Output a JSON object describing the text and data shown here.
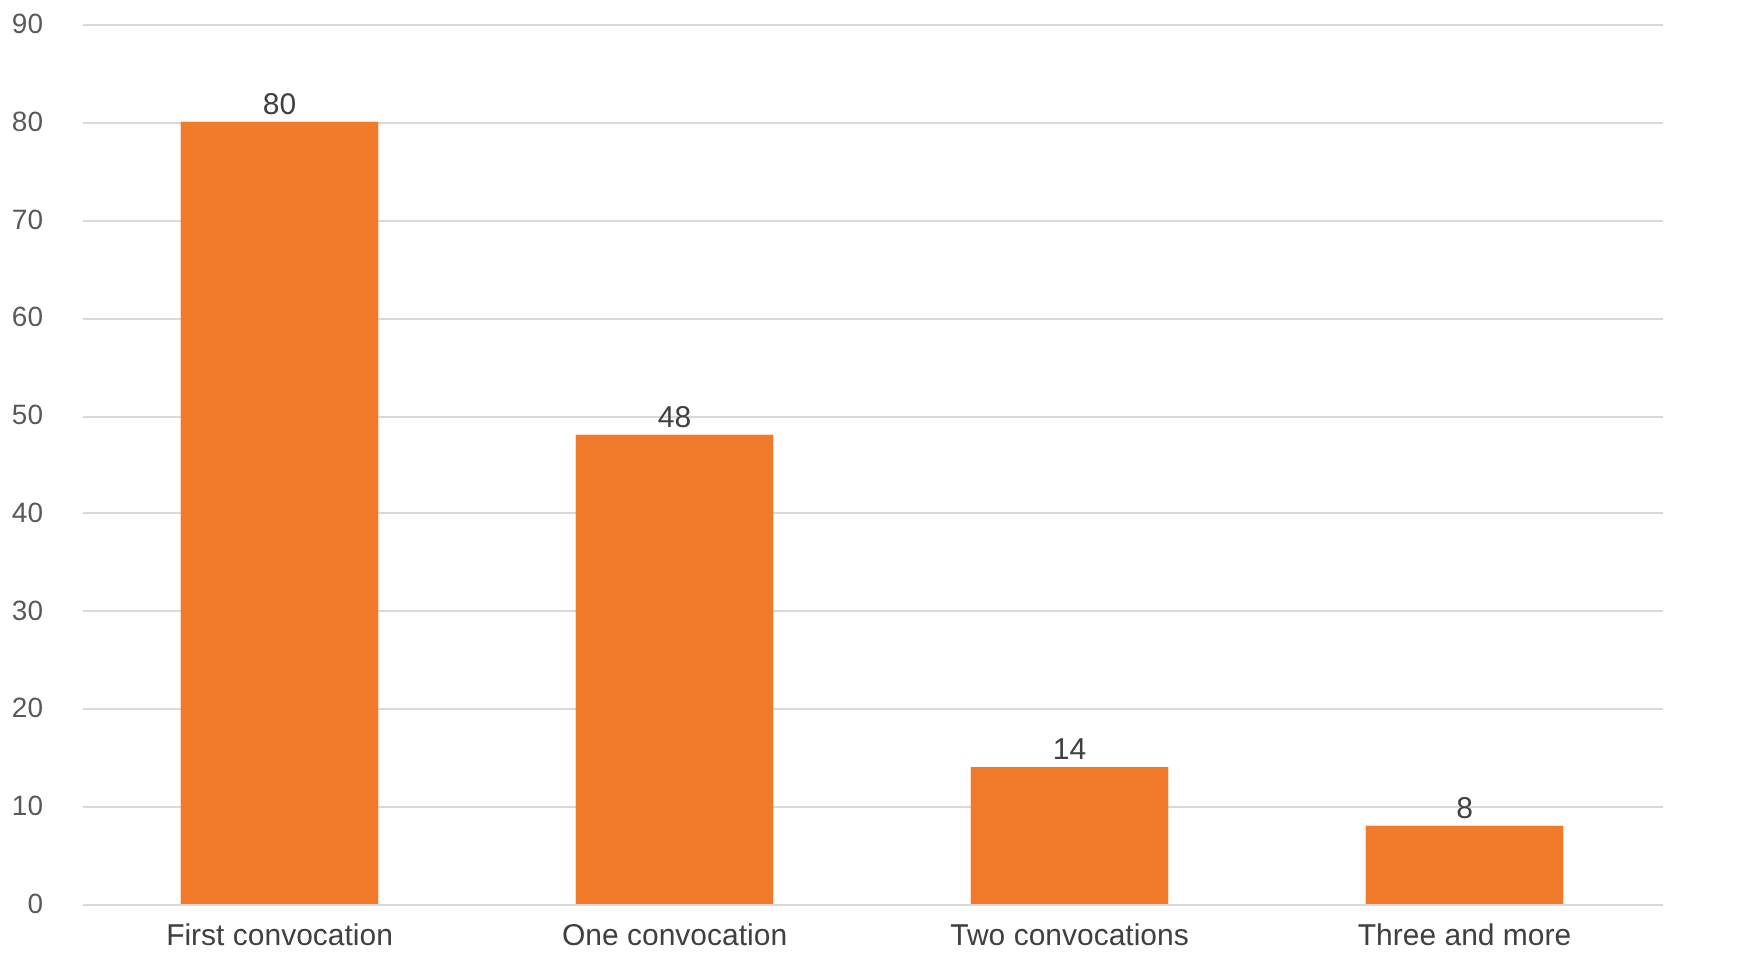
{
  "chart_data": {
    "type": "bar",
    "categories": [
      "First convocation",
      "One convocation",
      "Two convocations",
      "Three and more"
    ],
    "values": [
      80,
      48,
      14,
      8
    ],
    "color": "#f07a2a",
    "ylim": [
      0,
      90
    ],
    "yticks": [
      0,
      10,
      20,
      30,
      40,
      50,
      60,
      70,
      80,
      90
    ],
    "grid": "y",
    "data_labels": true
  }
}
